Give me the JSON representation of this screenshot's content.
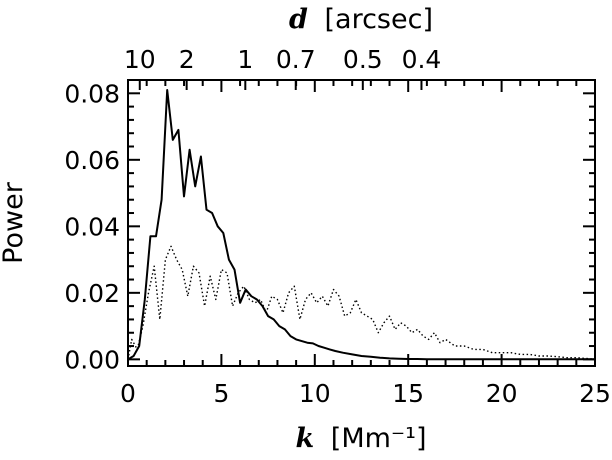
{
  "chart_data": {
    "type": "line",
    "xlabel": {
      "var": "k",
      "unit": "[Mm⁻¹]"
    },
    "ylabel": "Power",
    "top_axis_label": {
      "var": "d",
      "unit": "[arcsec]"
    },
    "xlim": [
      0,
      25
    ],
    "ylim": [
      -0.002,
      0.084
    ],
    "x_ticks": [
      0,
      5,
      10,
      15,
      20,
      25
    ],
    "x_tick_labels": [
      "0",
      "5",
      "10",
      "15",
      "20",
      "25"
    ],
    "y_ticks": [
      0.0,
      0.02,
      0.04,
      0.06,
      0.08
    ],
    "y_tick_labels": [
      "0.00",
      "0.02",
      "0.04",
      "0.06",
      "0.08"
    ],
    "top_ticks": [
      {
        "label": "10",
        "k": 0.63
      },
      {
        "label": "2",
        "k": 3.14
      },
      {
        "label": "1",
        "k": 6.28
      },
      {
        "label": "0.7",
        "k": 8.98
      },
      {
        "label": "0.5",
        "k": 12.57
      },
      {
        "label": "0.4",
        "k": 15.71
      }
    ],
    "grid": false,
    "series": [
      {
        "style": "solid",
        "x": [
          0.0,
          0.3,
          0.6,
          0.9,
          1.2,
          1.5,
          1.8,
          2.1,
          2.4,
          2.7,
          3.0,
          3.3,
          3.6,
          3.9,
          4.2,
          4.5,
          4.8,
          5.1,
          5.4,
          5.7,
          6.0,
          6.3,
          6.6,
          6.9,
          7.2,
          7.5,
          7.8,
          8.1,
          8.4,
          8.7,
          9.0,
          9.3,
          9.6,
          9.9,
          10.2,
          10.5,
          10.8,
          11.1,
          11.5,
          12.0,
          12.5,
          13.0,
          13.5,
          14.0,
          14.5,
          15.0,
          15.5,
          16.0,
          17.0,
          18.0,
          20.0,
          22.0,
          25.0
        ],
        "y": [
          0.0,
          0.001,
          0.004,
          0.018,
          0.037,
          0.037,
          0.048,
          0.081,
          0.066,
          0.069,
          0.049,
          0.063,
          0.052,
          0.061,
          0.045,
          0.044,
          0.04,
          0.038,
          0.03,
          0.027,
          0.017,
          0.021,
          0.019,
          0.018,
          0.016,
          0.013,
          0.012,
          0.01,
          0.009,
          0.007,
          0.006,
          0.0055,
          0.005,
          0.0048,
          0.004,
          0.0035,
          0.003,
          0.0025,
          0.002,
          0.0015,
          0.001,
          0.0008,
          0.0005,
          0.0003,
          0.0002,
          0.0001,
          0.0001,
          0.0,
          0.0,
          0.0,
          0.0,
          0.0,
          0.0
        ]
      },
      {
        "style": "dotted",
        "x": [
          0.0,
          0.2,
          0.5,
          0.8,
          1.1,
          1.4,
          1.7,
          2.0,
          2.3,
          2.6,
          2.9,
          3.2,
          3.5,
          3.8,
          4.1,
          4.4,
          4.7,
          5.0,
          5.3,
          5.6,
          5.9,
          6.2,
          6.5,
          6.8,
          7.1,
          7.4,
          7.7,
          8.0,
          8.3,
          8.6,
          8.9,
          9.2,
          9.5,
          9.8,
          10.1,
          10.4,
          10.7,
          11.0,
          11.3,
          11.6,
          11.9,
          12.2,
          12.5,
          12.8,
          13.1,
          13.4,
          13.7,
          14.0,
          14.3,
          14.6,
          14.9,
          15.2,
          15.5,
          15.8,
          16.1,
          16.4,
          16.7,
          17.0,
          17.5,
          18.0,
          18.5,
          19.0,
          19.5,
          20.0,
          20.5,
          21.0,
          21.5,
          22.0,
          22.5,
          23.0,
          23.5,
          24.0,
          24.5,
          25.0
        ],
        "y": [
          0.0,
          0.006,
          0.003,
          0.01,
          0.02,
          0.028,
          0.012,
          0.03,
          0.034,
          0.03,
          0.027,
          0.019,
          0.028,
          0.026,
          0.016,
          0.025,
          0.018,
          0.027,
          0.026,
          0.016,
          0.02,
          0.022,
          0.018,
          0.017,
          0.018,
          0.014,
          0.019,
          0.018,
          0.014,
          0.02,
          0.022,
          0.012,
          0.018,
          0.02,
          0.017,
          0.019,
          0.016,
          0.021,
          0.019,
          0.013,
          0.014,
          0.018,
          0.014,
          0.013,
          0.012,
          0.008,
          0.011,
          0.013,
          0.009,
          0.011,
          0.01,
          0.008,
          0.009,
          0.007,
          0.006,
          0.008,
          0.005,
          0.006,
          0.004,
          0.004,
          0.003,
          0.003,
          0.002,
          0.002,
          0.002,
          0.0015,
          0.0015,
          0.001,
          0.001,
          0.0008,
          0.0005,
          0.0005,
          0.0003,
          0.0
        ]
      }
    ]
  }
}
